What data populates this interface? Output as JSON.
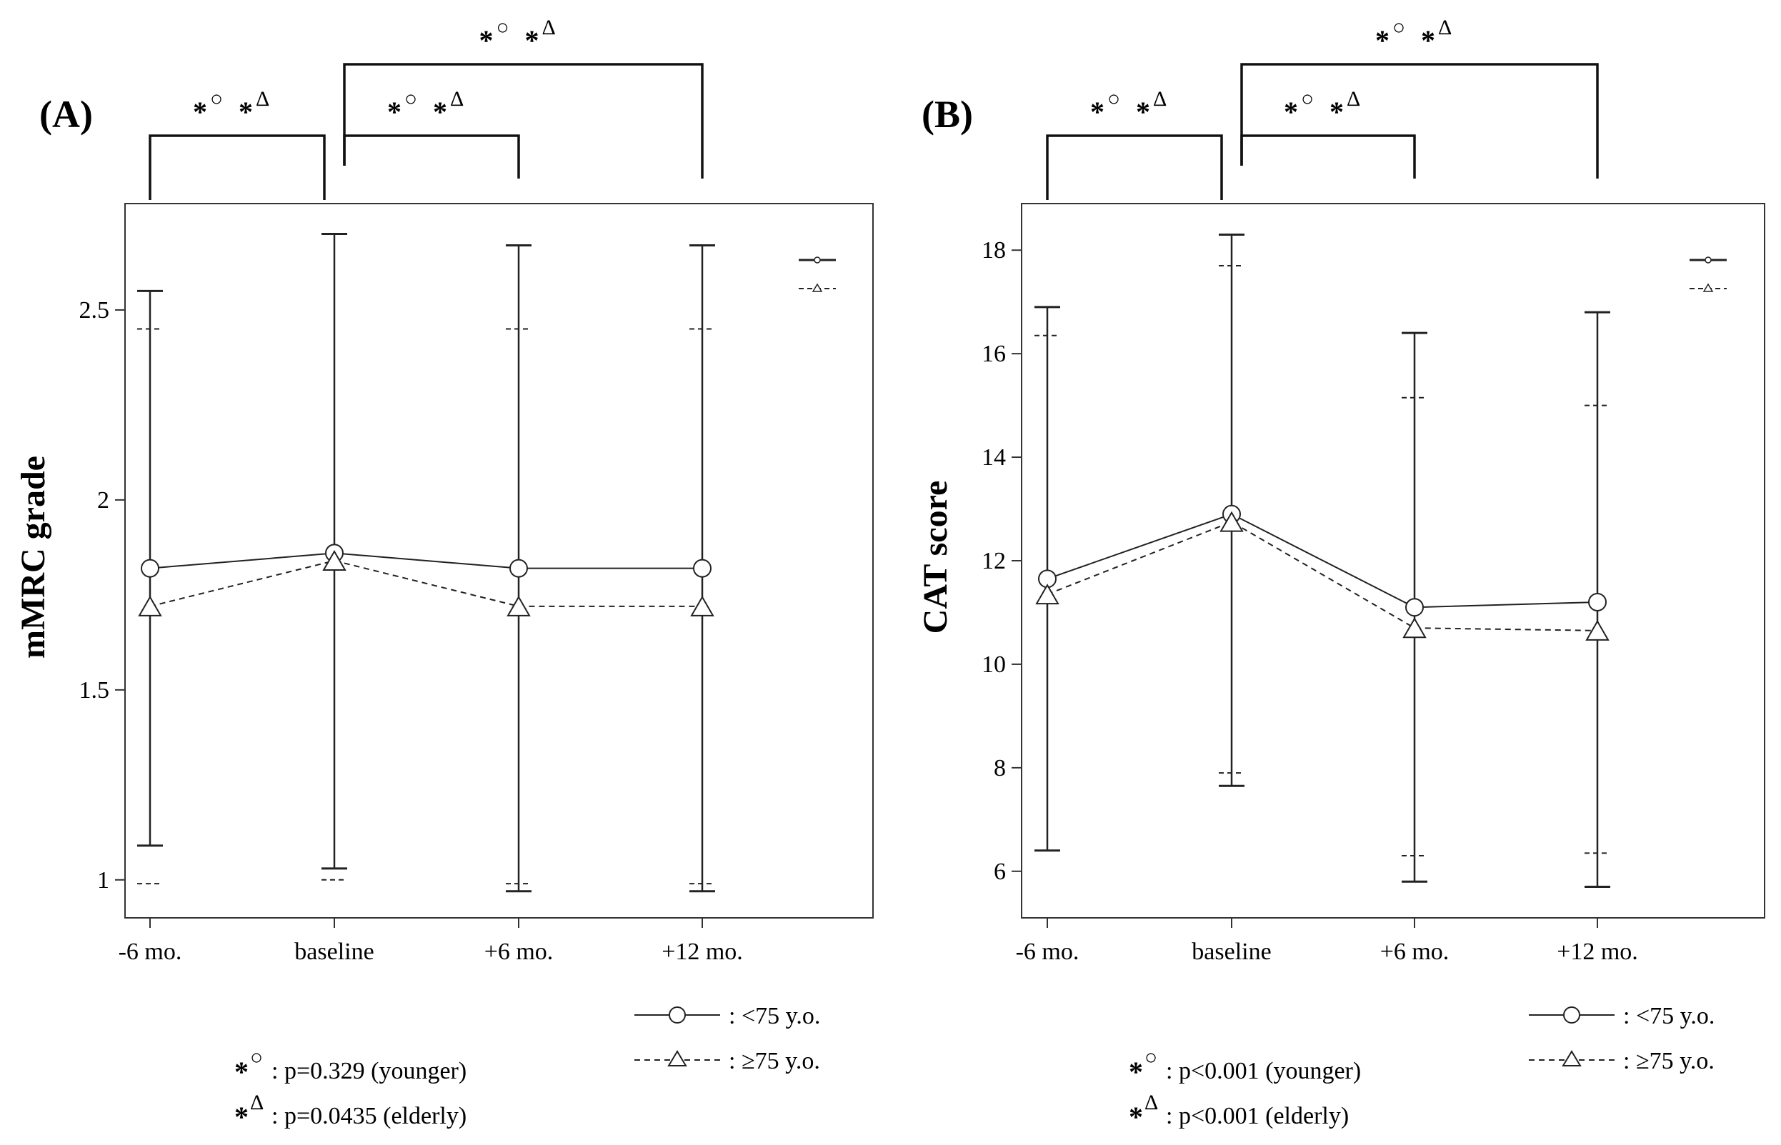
{
  "chart_data": [
    {
      "type": "line",
      "panel_label": "(A)",
      "ylabel": "mMRC grade",
      "xlabel": "",
      "categories": [
        "-6 mo.",
        "baseline",
        "+6 mo.",
        "+12 mo."
      ],
      "ylim": [
        0.9,
        2.78
      ],
      "yticks": [
        "1",
        "1.5",
        "2",
        "2.5"
      ],
      "ytick_values": [
        1,
        1.5,
        2,
        2.5
      ],
      "series": [
        {
          "name": "<75 y.o.",
          "marker": "circle",
          "line": "solid",
          "values": [
            1.82,
            1.86,
            1.82,
            1.82
          ],
          "upper": [
            2.55,
            2.7,
            2.67,
            2.67
          ],
          "lower": [
            1.09,
            1.03,
            0.97,
            0.97
          ]
        },
        {
          "name": "≥75 y.o.",
          "marker": "triangle",
          "line": "dashed",
          "values": [
            1.72,
            1.84,
            1.72,
            1.72
          ],
          "upper": [
            2.45,
            2.7,
            2.45,
            2.45
          ],
          "lower": [
            0.99,
            1.0,
            0.99,
            0.99
          ]
        }
      ],
      "brackets": [
        {
          "from": 0,
          "to": 1,
          "level": "low",
          "label": "*○*Δ"
        },
        {
          "from": 1,
          "to": 2,
          "level": "low",
          "label": "*○*Δ"
        },
        {
          "from": 1,
          "to": 3,
          "level": "high",
          "label": "*○*Δ"
        }
      ],
      "legend": [
        {
          "line_label": "—○—",
          "text": ": <75 y.o."
        },
        {
          "line_label": "- -Δ- -",
          "text": ": ≥75 y.o."
        }
      ],
      "footnotes": [
        {
          "text": ": p=0.329   (younger)"
        },
        {
          "text": ": p=0.0435 (elderly)"
        }
      ]
    },
    {
      "type": "line",
      "panel_label": "(B)",
      "ylabel": "CAT score",
      "xlabel": "",
      "categories": [
        "-6 mo.",
        "baseline",
        "+6 mo.",
        "+12 mo."
      ],
      "ylim": [
        5.1,
        18.9
      ],
      "yticks": [
        "6",
        "8",
        "10",
        "12",
        "14",
        "16",
        "18"
      ],
      "ytick_values": [
        6,
        8,
        10,
        12,
        14,
        16,
        18
      ],
      "series": [
        {
          "name": "<75 y.o.",
          "marker": "circle",
          "line": "solid",
          "values": [
            11.65,
            12.9,
            11.1,
            11.2
          ],
          "upper": [
            16.9,
            18.3,
            16.4,
            16.8
          ],
          "lower": [
            6.4,
            7.65,
            5.8,
            5.7
          ]
        },
        {
          "name": "≥75 y.o.",
          "marker": "triangle",
          "line": "dashed",
          "values": [
            11.35,
            12.75,
            10.7,
            10.65
          ],
          "upper": [
            16.35,
            17.7,
            15.15,
            15.0
          ],
          "lower": [
            6.4,
            7.9,
            6.3,
            6.35
          ]
        }
      ],
      "brackets": [
        {
          "from": 0,
          "to": 1,
          "level": "low",
          "label": "*○*Δ"
        },
        {
          "from": 1,
          "to": 2,
          "level": "low",
          "label": "*○*Δ"
        },
        {
          "from": 1,
          "to": 3,
          "level": "high",
          "label": "*○*Δ"
        }
      ],
      "legend": [
        {
          "line_label": "—○—",
          "text": ": <75 y.o."
        },
        {
          "line_label": "- -Δ- -",
          "text": ": ≥75 y.o."
        }
      ],
      "footnotes": [
        {
          "text": ": p<0.001 (younger)"
        },
        {
          "text": ": p<0.001 (elderly)"
        }
      ]
    }
  ]
}
